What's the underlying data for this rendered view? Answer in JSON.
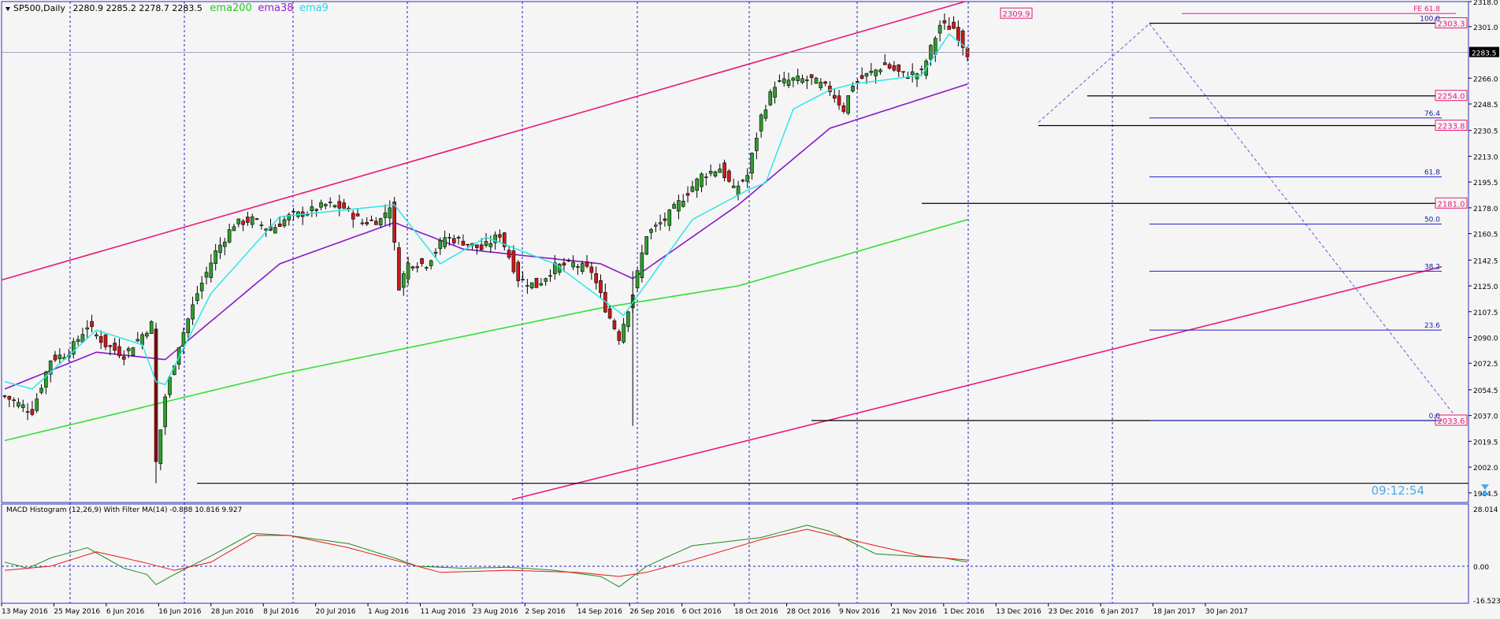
{
  "header": {
    "symbol": "SP500,Daily",
    "ohlc": "2280.9 2285.2 2278.7 2283.5",
    "ema200_label": "ema200",
    "ema38_label": "ema38",
    "ema9_label": "ema9"
  },
  "colors": {
    "background": "#f5f5f5",
    "grid": "#1f1fd0",
    "bull": "#2e9e2e",
    "bear": "#d01818",
    "ema200": "#33e033",
    "ema38": "#8a16c8",
    "ema9": "#2ee6e6",
    "channel": "#e8187a",
    "macd_fast": "#1f8a1f",
    "macd_slow": "#e81818"
  },
  "chart_data": [
    {
      "type": "candlestick",
      "title": "SP500,Daily",
      "ylim": [
        1978,
        2318
      ],
      "y_ticks": [
        "2318.0",
        "2301.0",
        "2283.5",
        "2266.0",
        "2248.5",
        "2230.5",
        "2213.0",
        "2195.5",
        "2178.0",
        "2160.5",
        "2142.5",
        "2125.0",
        "2107.5",
        "2090.0",
        "2072.5",
        "2054.5",
        "2037.0",
        "2019.5",
        "2002.0",
        "1984.5"
      ],
      "last_price": "2283.5",
      "x_ticks": [
        "13 May 2016",
        "25 May 2016",
        "6 Jun 2016",
        "16 Jun 2016",
        "28 Jun 2016",
        "8 Jul 2016",
        "20 Jul 2016",
        "1 Aug 2016",
        "11 Aug 2016",
        "23 Aug 2016",
        "2 Sep 2016",
        "14 Sep 2016",
        "26 Sep 2016",
        "6 Oct 2016",
        "18 Oct 2016",
        "28 Oct 2016",
        "9 Nov 2016",
        "21 Nov 2016",
        "1 Dec 2016",
        "13 Dec 2016",
        "23 Dec 2016",
        "6 Jan 2017",
        "18 Jan 2017",
        "30 Jan 2017"
      ],
      "close_anchors": [
        [
          0,
          2050
        ],
        [
          6,
          2040
        ],
        [
          10,
          2075
        ],
        [
          14,
          2080
        ],
        [
          18,
          2098
        ],
        [
          22,
          2085
        ],
        [
          26,
          2078
        ],
        [
          30,
          2092
        ],
        [
          32,
          2099
        ],
        [
          33,
          2005
        ],
        [
          35,
          2050
        ],
        [
          38,
          2085
        ],
        [
          42,
          2120
        ],
        [
          46,
          2148
        ],
        [
          50,
          2167
        ],
        [
          54,
          2170
        ],
        [
          58,
          2163
        ],
        [
          62,
          2172
        ],
        [
          66,
          2175
        ],
        [
          70,
          2180
        ],
        [
          74,
          2178
        ],
        [
          78,
          2168
        ],
        [
          82,
          2170
        ],
        [
          84,
          2180
        ],
        [
          86,
          2125
        ],
        [
          88,
          2140
        ],
        [
          92,
          2140
        ],
        [
          96,
          2158
        ],
        [
          100,
          2155
        ],
        [
          104,
          2150
        ],
        [
          108,
          2160
        ],
        [
          112,
          2130
        ],
        [
          116,
          2125
        ],
        [
          120,
          2138
        ],
        [
          124,
          2140
        ],
        [
          128,
          2135
        ],
        [
          131,
          2110
        ],
        [
          134,
          2090
        ],
        [
          137,
          2120
        ],
        [
          140,
          2160
        ],
        [
          144,
          2170
        ],
        [
          148,
          2185
        ],
        [
          152,
          2200
        ],
        [
          156,
          2205
        ],
        [
          159,
          2190
        ],
        [
          162,
          2200
        ],
        [
          165,
          2240
        ],
        [
          168,
          2262
        ],
        [
          172,
          2265
        ],
        [
          176,
          2265
        ],
        [
          180,
          2258
        ],
        [
          183,
          2245
        ],
        [
          185,
          2262
        ],
        [
          188,
          2268
        ],
        [
          192,
          2275
        ],
        [
          196,
          2268
        ],
        [
          200,
          2270
        ],
        [
          204,
          2302
        ],
        [
          207,
          2300
        ],
        [
          210,
          2283
        ]
      ],
      "ema200": [
        [
          0,
          2020
        ],
        [
          60,
          2065
        ],
        [
          130,
          2110
        ],
        [
          160,
          2125
        ],
        [
          210,
          2170
        ]
      ],
      "ema38_anchors": [
        [
          0,
          2055
        ],
        [
          20,
          2080
        ],
        [
          35,
          2075
        ],
        [
          60,
          2140
        ],
        [
          85,
          2168
        ],
        [
          100,
          2150
        ],
        [
          130,
          2140
        ],
        [
          137,
          2130
        ],
        [
          160,
          2180
        ],
        [
          180,
          2232
        ],
        [
          210,
          2262
        ]
      ],
      "ema9_anchors": [
        [
          0,
          2060
        ],
        [
          6,
          2055
        ],
        [
          20,
          2095
        ],
        [
          30,
          2085
        ],
        [
          33,
          2060
        ],
        [
          35,
          2058
        ],
        [
          45,
          2120
        ],
        [
          60,
          2172
        ],
        [
          85,
          2180
        ],
        [
          95,
          2140
        ],
        [
          105,
          2158
        ],
        [
          120,
          2140
        ],
        [
          135,
          2105
        ],
        [
          150,
          2170
        ],
        [
          162,
          2190
        ],
        [
          166,
          2195
        ],
        [
          172,
          2245
        ],
        [
          180,
          2258
        ],
        [
          185,
          2262
        ],
        [
          200,
          2268
        ],
        [
          206,
          2296
        ],
        [
          210,
          2286
        ]
      ],
      "horizontal_levels": [
        {
          "price": 2309.9,
          "label": "2309.9"
        },
        {
          "price": 2303.3,
          "label": "2303.3"
        },
        {
          "price": 2254.0,
          "label": "2254.0"
        },
        {
          "price": 2233.8,
          "label": "2233.8"
        },
        {
          "price": 2181.0,
          "label": "2181.0"
        },
        {
          "price": 2033.6,
          "label": "2033.6"
        }
      ],
      "fibonacci": [
        {
          "level": "FE 61.8",
          "price": 2309.9
        },
        {
          "level": "100.0",
          "price": 2303.3
        },
        {
          "level": "76.4",
          "price": 2239.0
        },
        {
          "level": "61.8",
          "price": 2199.0
        },
        {
          "level": "50.0",
          "price": 2167.0
        },
        {
          "level": "38.2",
          "price": 2135.0
        },
        {
          "level": "23.6",
          "price": 2095.0
        },
        {
          "level": "0.0",
          "price": 2033.6
        }
      ],
      "countdown": "09:12:54"
    },
    {
      "type": "line",
      "title": "MACD Histogram (12,26,9) With Filter MA(14) -0.888 10.816 9.927",
      "ylim": [
        -16.523,
        28.014
      ],
      "y_ticks": [
        "28.014",
        "0.00",
        "-16.523"
      ],
      "series": [
        {
          "anchors": [
            [
              0,
              2
            ],
            [
              5,
              -1
            ],
            [
              10,
              4
            ],
            [
              18,
              9
            ],
            [
              26,
              -1
            ],
            [
              31,
              -4
            ],
            [
              33,
              -9
            ],
            [
              37,
              -4
            ],
            [
              45,
              5
            ],
            [
              54,
              16
            ],
            [
              62,
              15
            ],
            [
              75,
              11
            ],
            [
              85,
              4
            ],
            [
              90,
              0
            ],
            [
              100,
              -1
            ],
            [
              110,
              -0.5
            ],
            [
              120,
              -2
            ],
            [
              130,
              -5
            ],
            [
              134,
              -10
            ],
            [
              140,
              0
            ],
            [
              150,
              10
            ],
            [
              165,
              14
            ],
            [
              175,
              20
            ],
            [
              180,
              17
            ],
            [
              190,
              6
            ],
            [
              205,
              4
            ],
            [
              210,
              2
            ]
          ]
        },
        {
          "anchors": [
            [
              0,
              -2
            ],
            [
              10,
              0
            ],
            [
              20,
              7
            ],
            [
              30,
              2
            ],
            [
              37,
              -2
            ],
            [
              45,
              2
            ],
            [
              55,
              15
            ],
            [
              62,
              15
            ],
            [
              75,
              9
            ],
            [
              85,
              3
            ],
            [
              95,
              -3
            ],
            [
              110,
              -2
            ],
            [
              125,
              -3
            ],
            [
              134,
              -5
            ],
            [
              140,
              -3
            ],
            [
              150,
              3
            ],
            [
              165,
              13
            ],
            [
              175,
              18
            ],
            [
              190,
              10
            ],
            [
              200,
              5
            ],
            [
              210,
              3
            ]
          ]
        }
      ]
    }
  ]
}
